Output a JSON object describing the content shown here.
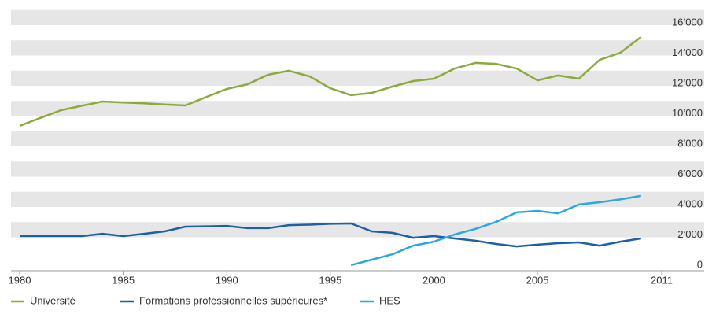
{
  "chart_data": {
    "type": "line",
    "x": [
      1980,
      1981,
      1982,
      1983,
      1984,
      1985,
      1986,
      1987,
      1988,
      1989,
      1990,
      1991,
      1992,
      1993,
      1994,
      1995,
      1996,
      1997,
      1998,
      1999,
      2000,
      2001,
      2002,
      2003,
      2004,
      2005,
      2006,
      2007,
      2008,
      2009,
      2010
    ],
    "xlim": [
      1980,
      2011
    ],
    "xticks": [
      1980,
      1985,
      1990,
      1995,
      2000,
      2005,
      2011
    ],
    "ylim": [
      0,
      17000
    ],
    "yticks": [
      0,
      {
        "value": 2000,
        "label": "2’000"
      },
      {
        "value": 4000,
        "label": "4’000"
      },
      {
        "value": 6000,
        "label": "6’000"
      },
      {
        "value": 8000,
        "label": "8’000"
      },
      {
        "value": 10000,
        "label": "10’000"
      },
      {
        "value": 12000,
        "label": "12’000"
      },
      {
        "value": 14000,
        "label": "14’000"
      },
      {
        "value": 16000,
        "label": "16’000"
      }
    ],
    "grid": true,
    "series": [
      {
        "name": "Université",
        "color": "#8aab3c",
        "values": [
          9350,
          9880,
          10390,
          10680,
          10960,
          10900,
          10840,
          10770,
          10700,
          11250,
          11790,
          12100,
          12730,
          12990,
          12620,
          11840,
          11380,
          11530,
          11950,
          12310,
          12470,
          13140,
          13510,
          13450,
          13140,
          12360,
          12680,
          12470,
          13710,
          14180,
          15220
        ]
      },
      {
        "name": "Formations professionnelles supérieures*",
        "color": "#1f5fa6",
        "values": [
          2080,
          2080,
          2080,
          2080,
          2230,
          2080,
          2230,
          2390,
          2700,
          2720,
          2750,
          2600,
          2600,
          2800,
          2830,
          2890,
          2910,
          2390,
          2290,
          1970,
          2080,
          1920,
          1770,
          1560,
          1400,
          1510,
          1610,
          1660,
          1450,
          1710,
          1920
        ]
      },
      {
        "name": "HES",
        "color": "#2aa8e0",
        "values": [
          null,
          null,
          null,
          null,
          null,
          null,
          null,
          null,
          null,
          null,
          null,
          null,
          null,
          null,
          null,
          null,
          160,
          520,
          880,
          1450,
          1710,
          2180,
          2550,
          3010,
          3640,
          3740,
          3580,
          4160,
          4310,
          4500,
          4730
        ]
      }
    ]
  }
}
